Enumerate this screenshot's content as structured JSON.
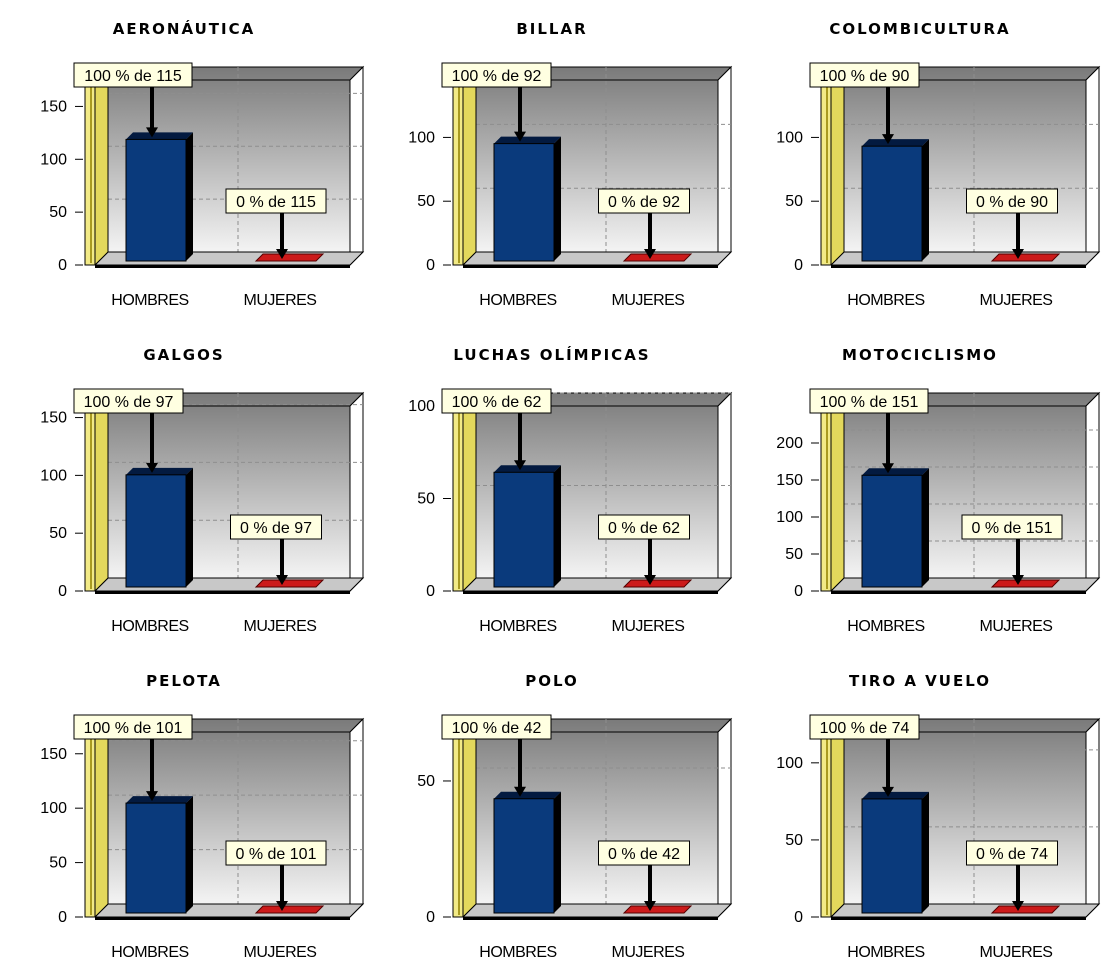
{
  "chart_data": [
    {
      "type": "bar",
      "title": "AERONÁUTICA",
      "categories": [
        "HOMBRES",
        "MUJERES"
      ],
      "values": [
        115,
        0
      ],
      "labels": [
        "100 % de 115",
        "0 % de 115"
      ],
      "yticks": [
        0,
        50,
        100,
        150
      ],
      "ylim": [
        0,
        175
      ],
      "grid": true
    },
    {
      "type": "bar",
      "title": "BILLAR",
      "categories": [
        "HOMBRES",
        "MUJERES"
      ],
      "values": [
        92,
        0
      ],
      "labels": [
        "100 % de 92",
        "0 % de 92"
      ],
      "yticks": [
        0,
        50,
        100
      ],
      "ylim": [
        0,
        145
      ],
      "grid": true
    },
    {
      "type": "bar",
      "title": "COLOMBICULTURA",
      "categories": [
        "HOMBRES",
        "MUJERES"
      ],
      "values": [
        90,
        0
      ],
      "labels": [
        "100 % de 90",
        "0 % de 90"
      ],
      "yticks": [
        0,
        50,
        100
      ],
      "ylim": [
        0,
        145
      ],
      "grid": true
    },
    {
      "type": "bar",
      "title": "GALGOS",
      "categories": [
        "HOMBRES",
        "MUJERES"
      ],
      "values": [
        97,
        0
      ],
      "labels": [
        "100 % de 97",
        "0 % de 97"
      ],
      "yticks": [
        0,
        50,
        100,
        150
      ],
      "ylim": [
        0,
        160
      ],
      "grid": true
    },
    {
      "type": "bar",
      "title": "LUCHAS OLÍMPICAS",
      "categories": [
        "HOMBRES",
        "MUJERES"
      ],
      "values": [
        62,
        0
      ],
      "labels": [
        "100 % de 62",
        "0 % de 62"
      ],
      "yticks": [
        0,
        50,
        100
      ],
      "ylim": [
        0,
        100
      ],
      "grid": true
    },
    {
      "type": "bar",
      "title": "MOTOCICLISMO",
      "categories": [
        "HOMBRES",
        "MUJERES"
      ],
      "values": [
        151,
        0
      ],
      "labels": [
        "100 % de 151",
        "0 % de 151"
      ],
      "yticks": [
        0,
        50,
        100,
        150,
        200
      ],
      "ylim": [
        0,
        250
      ],
      "grid": true
    },
    {
      "type": "bar",
      "title": "PELOTA",
      "categories": [
        "HOMBRES",
        "MUJERES"
      ],
      "values": [
        101,
        0
      ],
      "labels": [
        "100 % de 101",
        "0 % de 101"
      ],
      "yticks": [
        0,
        50,
        100,
        150
      ],
      "ylim": [
        0,
        170
      ],
      "grid": true
    },
    {
      "type": "bar",
      "title": "POLO",
      "categories": [
        "HOMBRES",
        "MUJERES"
      ],
      "values": [
        42,
        0
      ],
      "labels": [
        "100 % de 42",
        "0 % de 42"
      ],
      "yticks": [
        0,
        50
      ],
      "ylim": [
        0,
        68
      ],
      "grid": true
    },
    {
      "type": "bar",
      "title": "TIRO A VUELO",
      "categories": [
        "HOMBRES",
        "MUJERES"
      ],
      "values": [
        74,
        0
      ],
      "labels": [
        "100 % de 74",
        "0 % de 74"
      ],
      "yticks": [
        0,
        50,
        100
      ],
      "ylim": [
        0,
        120
      ],
      "grid": true
    }
  ],
  "colors": {
    "bar_hombres": "#0a3a7c",
    "bar_mujeres": "#cc1a1a",
    "label_bg": "#ffffe1",
    "wall": "#e3d85c",
    "plot_top": "#7a7a7a",
    "plot_bottom": "#f4f4f4"
  }
}
